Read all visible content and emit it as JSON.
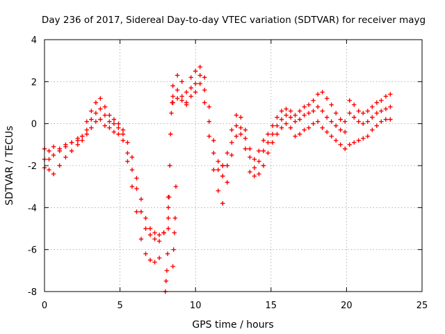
{
  "chart_data": {
    "type": "scatter",
    "title": "Day 236 of 2017, Sidereal Day-to-day VTEC variation (SDTVAR) for receiver mayg",
    "xlabel": "GPS time / hours",
    "ylabel": "SDTVAR / TECUs",
    "xlim": [
      0,
      25
    ],
    "ylim": [
      -8,
      4
    ],
    "xticks": [
      0,
      5,
      10,
      15,
      20,
      25
    ],
    "yticks": [
      -8,
      -6,
      -4,
      -2,
      0,
      2,
      4
    ],
    "grid": true,
    "marker": "plus",
    "color": "#ff0000",
    "series": [
      {
        "x": [
          0,
          0.3,
          0.6,
          1.0,
          1.4,
          1.8,
          2.2,
          2.5,
          2.8,
          3.1,
          3.4,
          3.7,
          4.0,
          4.3,
          4.6,
          4.9,
          5.2,
          5.5,
          5.8,
          6.1,
          6.4,
          6.7,
          7.0,
          7.3,
          7.6,
          7.9,
          8.2,
          8.5,
          8.8,
          9.1,
          9.4,
          9.7,
          10.0,
          10.3,
          10.6,
          10.9,
          11.2,
          11.5,
          11.8
        ],
        "y": [
          -1.2,
          -1.3,
          -1.1,
          -1.3,
          -1.1,
          -0.9,
          -0.7,
          -0.6,
          0.1,
          0.6,
          1.0,
          1.2,
          0.8,
          0.4,
          0.2,
          0.0,
          -0.3,
          -0.9,
          -1.6,
          -2.6,
          -3.6,
          -4.5,
          -5.0,
          -5.2,
          -5.3,
          -5.2,
          -4.0,
          1.8,
          2.3,
          2.0,
          1.5,
          2.2,
          2.5,
          2.7,
          2.2,
          0.8,
          -0.8,
          -1.8,
          -2.0
        ]
      },
      {
        "x": [
          0,
          0.3,
          0.6,
          1.0,
          1.4,
          1.8,
          2.2,
          2.5,
          2.8,
          3.1,
          3.4,
          3.7,
          4.0,
          4.3,
          4.6,
          4.9,
          5.2,
          5.5,
          5.8,
          6.1,
          6.4,
          6.7,
          7.0,
          7.3,
          7.6,
          7.9,
          8.2,
          8.5,
          8.8,
          9.1,
          9.4,
          9.7,
          10.0,
          10.3,
          10.6,
          10.9,
          11.2,
          11.5,
          11.8
        ],
        "y": [
          -1.7,
          -1.7,
          -1.5,
          -1.2,
          -1.0,
          -0.9,
          -0.8,
          -0.6,
          -0.3,
          0.2,
          0.5,
          0.7,
          0.4,
          0.1,
          0.0,
          -0.2,
          -0.5,
          -1.4,
          -2.2,
          -3.1,
          -4.2,
          -5.0,
          -5.3,
          -5.5,
          -5.6,
          -5.2,
          -4.5,
          1.3,
          1.6,
          1.3,
          1.0,
          1.7,
          1.9,
          2.3,
          1.6,
          0.1,
          -1.4,
          -2.2,
          -2.5
        ]
      },
      {
        "x": [
          0,
          0.3,
          0.6,
          1.0,
          1.4,
          1.8,
          2.2,
          2.5,
          2.8,
          3.1,
          3.4,
          3.7,
          4.0,
          4.3,
          4.6,
          4.9,
          5.2,
          5.5,
          5.8,
          6.1,
          6.4,
          6.7,
          7.0,
          7.3,
          7.6,
          7.9,
          8.2,
          8.5,
          8.8,
          9.1,
          9.4,
          9.7,
          10.0,
          10.3,
          10.6,
          10.9,
          11.2,
          11.5,
          11.8
        ],
        "y": [
          -2.1,
          -2.2,
          -2.4,
          -2.0,
          -1.6,
          -1.3,
          -1.0,
          -0.8,
          -0.5,
          -0.2,
          0.1,
          0.2,
          -0.1,
          -0.2,
          -0.4,
          -0.5,
          -0.8,
          -1.8,
          -3.0,
          -4.2,
          -5.5,
          -6.2,
          -6.5,
          -6.6,
          -6.4,
          -5.2,
          -3.5,
          1.0,
          1.2,
          1.1,
          0.9,
          1.3,
          1.5,
          1.9,
          1.0,
          -0.6,
          -2.2,
          -3.2,
          -3.8
        ]
      },
      {
        "x": [
          8.0,
          8.05,
          8.1,
          8.15,
          8.2,
          8.25,
          8.3,
          8.35,
          8.4,
          8.45,
          8.5,
          8.55,
          8.6,
          8.65,
          8.7
        ],
        "y": [
          -8.0,
          -7.5,
          -7.0,
          -6.2,
          -5.0,
          -3.5,
          -2.0,
          -0.5,
          0.5,
          1.0,
          -6.8,
          -6.0,
          -5.2,
          -4.5,
          -3.0
        ]
      },
      {
        "x": [
          11.8,
          12.1,
          12.4,
          12.7,
          13.0,
          13.3,
          13.6,
          13.9,
          14.2,
          14.5,
          14.8,
          15.1,
          15.4,
          15.7,
          16.0,
          16.3,
          16.6,
          16.9,
          17.2,
          17.5,
          17.8,
          18.1,
          18.4,
          18.7,
          19.0,
          19.3,
          19.6,
          19.9,
          20.2,
          20.5,
          20.8,
          21.1,
          21.4,
          21.7,
          22.0,
          22.3,
          22.6,
          22.9
        ],
        "y": [
          -2.0,
          -1.4,
          -0.3,
          0.4,
          0.3,
          -0.3,
          -1.2,
          -1.7,
          -1.3,
          -0.8,
          -0.5,
          -0.1,
          0.3,
          0.6,
          0.7,
          0.6,
          0.4,
          0.6,
          0.8,
          0.9,
          1.1,
          1.4,
          1.5,
          1.2,
          0.9,
          0.5,
          0.2,
          0.1,
          1.1,
          0.9,
          0.6,
          0.5,
          0.6,
          0.8,
          1.0,
          1.1,
          1.3,
          1.4
        ]
      },
      {
        "x": [
          11.8,
          12.1,
          12.4,
          12.7,
          13.0,
          13.3,
          13.6,
          13.9,
          14.2,
          14.5,
          14.8,
          15.1,
          15.4,
          15.7,
          16.0,
          16.3,
          16.6,
          16.9,
          17.2,
          17.5,
          17.8,
          18.1,
          18.4,
          18.7,
          19.0,
          19.3,
          19.6,
          19.9,
          20.2,
          20.5,
          20.8,
          21.1,
          21.4,
          21.7,
          22.0,
          22.3,
          22.6,
          22.9
        ],
        "y": [
          -2.5,
          -2.0,
          -0.9,
          -0.1,
          -0.2,
          -0.7,
          -1.6,
          -2.1,
          -1.8,
          -1.3,
          -0.9,
          -0.5,
          -0.1,
          0.2,
          0.4,
          0.3,
          0.1,
          0.2,
          0.4,
          0.5,
          0.6,
          0.8,
          0.6,
          0.3,
          0.1,
          -0.1,
          -0.3,
          -0.4,
          0.5,
          0.3,
          0.1,
          0.0,
          0.1,
          0.3,
          0.5,
          0.6,
          0.7,
          0.8
        ]
      },
      {
        "x": [
          11.8,
          12.1,
          12.4,
          12.7,
          13.0,
          13.3,
          13.6,
          13.9,
          14.2,
          14.5,
          14.8,
          15.1,
          15.4,
          15.7,
          16.0,
          16.3,
          16.6,
          16.9,
          17.2,
          17.5,
          17.8,
          18.1,
          18.4,
          18.7,
          19.0,
          19.3,
          19.6,
          19.9,
          20.2,
          20.5,
          20.8,
          21.1,
          21.4,
          21.7,
          22.0,
          22.3,
          22.6,
          22.9
        ],
        "y": [
          -3.8,
          -2.8,
          -1.5,
          -0.6,
          -0.5,
          -1.2,
          -2.3,
          -2.5,
          -2.4,
          -2.0,
          -1.4,
          -0.9,
          -0.5,
          -0.2,
          0.0,
          -0.2,
          -0.6,
          -0.5,
          -0.3,
          -0.2,
          0.0,
          0.1,
          -0.2,
          -0.4,
          -0.6,
          -0.8,
          -1.0,
          -1.2,
          -1.0,
          -0.9,
          -0.8,
          -0.7,
          -0.6,
          -0.3,
          -0.1,
          0.1,
          0.2,
          0.2
        ]
      }
    ]
  }
}
